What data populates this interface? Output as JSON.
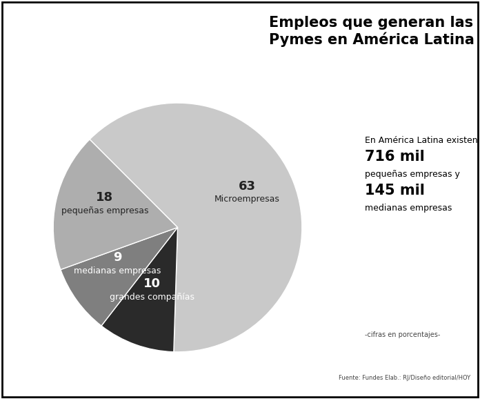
{
  "chart_data": {
    "type": "pie",
    "title": "Empleos que generan las Pymes en América Latina",
    "categories": [
      "Microempresas",
      "grandes compañías",
      "medianas empresas",
      "pequeñas empresas"
    ],
    "values": [
      63,
      10,
      9,
      18
    ],
    "colors": [
      "#c9c9c9",
      "#2a2a2a",
      "#7f7f7f",
      "#aeaeae"
    ],
    "data_labels": true,
    "annotations": [
      "En América Latina existen",
      "716 mil",
      "pequeñas empresas y",
      "145 mil",
      "medianas empresas"
    ],
    "note": "-cifras en porcentajes-",
    "source": "Fuente: Fundes Elab.: RJ/Diseño editorial/HOY"
  }
}
